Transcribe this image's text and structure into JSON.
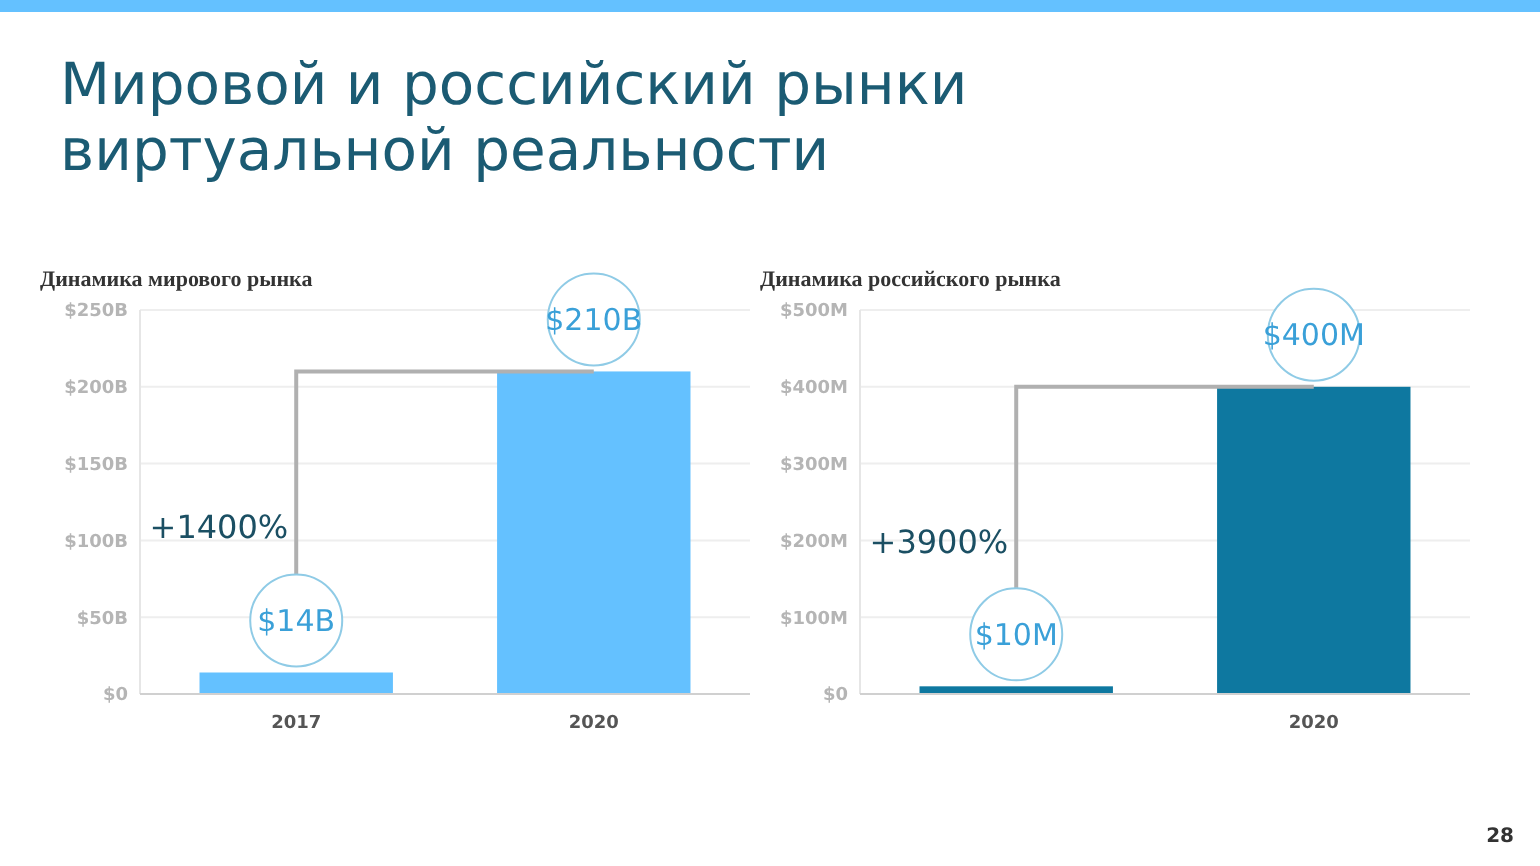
{
  "chart_data": [
    {
      "type": "other",
      "title": "Мировой и российский рынки\nвиртуальной реальности",
      "annotations": [
        "28"
      ]
    },
    {
      "type": "bar",
      "title": "Динамика мирового рынка",
      "categories": [
        "2017",
        "2020"
      ],
      "values": [
        14,
        210
      ],
      "color": "#64c1ff",
      "value_labels": [
        "$14B",
        "$210B"
      ],
      "ylim": [
        0,
        250
      ],
      "yticks": [
        {
          "value": 0,
          "label": "$0"
        },
        {
          "value": 50,
          "label": "$50B"
        },
        {
          "value": 100,
          "label": "$100B"
        },
        {
          "value": 150,
          "label": "$150B"
        },
        {
          "value": 200,
          "label": "$200B"
        },
        {
          "value": 250,
          "label": "$250B"
        }
      ],
      "grid": "y",
      "annotations": [
        "+1400%"
      ]
    },
    {
      "type": "bar",
      "title": "Динамика российского рынка",
      "categories": [
        null,
        "2020"
      ],
      "values": [
        10,
        400
      ],
      "color": "#0e78a0",
      "value_labels": [
        "$10M",
        "$400M"
      ],
      "ylim": [
        0,
        500
      ],
      "yticks": [
        {
          "value": 0,
          "label": "$0"
        },
        {
          "value": 100,
          "label": "$100M"
        },
        {
          "value": 200,
          "label": "$200M"
        },
        {
          "value": 300,
          "label": "$300M"
        },
        {
          "value": 400,
          "label": "$400M"
        },
        {
          "value": 500,
          "label": "$500M"
        }
      ],
      "grid": "y",
      "annotations": [
        "+3900%"
      ]
    }
  ]
}
